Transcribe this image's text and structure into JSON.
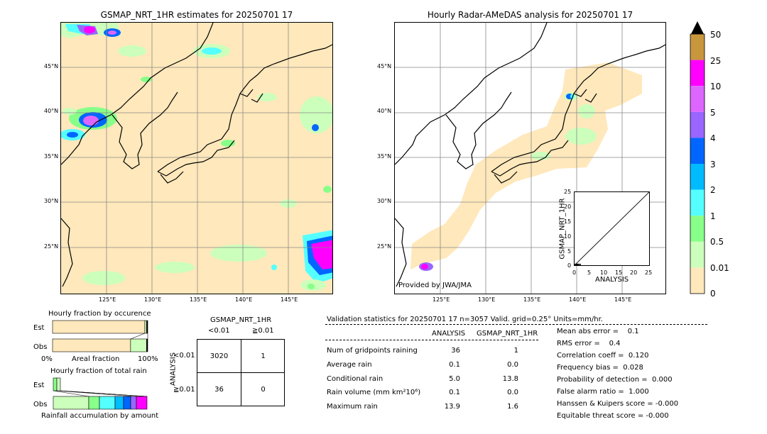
{
  "left_map": {
    "title": "GSMAP_NRT_1HR estimates for 20250701 17",
    "lat_ticks": [
      "45°N",
      "40°N",
      "35°N",
      "30°N",
      "25°N"
    ],
    "lon_ticks": [
      "125°E",
      "130°E",
      "135°E",
      "140°E",
      "145°E"
    ]
  },
  "right_map": {
    "title": "Hourly Radar-AMeDAS analysis for 20250701 17",
    "lat_ticks": [
      "45°N",
      "40°N",
      "35°N",
      "30°N",
      "25°N"
    ],
    "lon_ticks": [
      "125°E",
      "130°E",
      "135°E",
      "140°E",
      "145°E"
    ],
    "credit": "Provided by JWA/JMA"
  },
  "colorbar": {
    "labels": [
      "50",
      "25",
      "10",
      "5",
      "4",
      "3",
      "2",
      "1",
      "0.5",
      "0.01",
      "0"
    ],
    "colors": [
      "#c8963c",
      "#ff00ff",
      "#dd66ff",
      "#9966ff",
      "#0066ff",
      "#00bbff",
      "#55ffff",
      "#88ff88",
      "#ccffbb",
      "#ffe8bb"
    ],
    "overflow_color": "#000000"
  },
  "colors": {
    "land": "#ffe8bb",
    "light_green": "#ccffbb",
    "green": "#88ff88",
    "cyan": "#55ffff",
    "sky": "#00bbff",
    "blue": "#0066ff",
    "violet": "#9966ff",
    "lilac": "#dd66ff",
    "magenta": "#ff00ff"
  },
  "scatter": {
    "xlabel": "ANALYSIS",
    "ylabel": "GSMAP_NRT_1HR",
    "ticks": [
      "0",
      "5",
      "10",
      "15",
      "20",
      "25"
    ]
  },
  "chart_data": [
    {
      "type": "scatter",
      "title": "",
      "xlabel": "ANALYSIS",
      "ylabel": "GSMAP_NRT_1HR",
      "xlim": [
        0,
        25
      ],
      "ylim": [
        0,
        25
      ],
      "x": [
        0.1,
        0.3,
        0.5,
        0.8,
        1.0,
        1.6
      ],
      "y": [
        0.0,
        0.0,
        0.0,
        0.0,
        0.0,
        0.0
      ],
      "reference_line": "y=x"
    },
    {
      "type": "bar",
      "title": "Hourly fraction by occurence",
      "categories": [
        "Est",
        "Obs"
      ],
      "xlabel": "Areal fraction",
      "xlim_labels": [
        "0%",
        "100%"
      ],
      "series": [
        {
          "name": "",
          "values": [
            0.97,
            0.82
          ]
        },
        {
          "name": "",
          "values": [
            0.03,
            0.18
          ]
        }
      ]
    },
    {
      "type": "bar",
      "title": "Hourly fraction of total rain",
      "categories": [
        "Est",
        "Obs"
      ],
      "xlabel": "Rainfall accumulation by amount"
    }
  ],
  "occurrence": {
    "title": "Hourly fraction by occurence",
    "est": "Est",
    "obs": "Obs",
    "x0": "0%",
    "xlabel": "Areal fraction",
    "x1": "100%"
  },
  "totalrain": {
    "title": "Hourly fraction of total rain",
    "est": "Est",
    "obs": "Obs",
    "xlabel": "Rainfall accumulation by amount"
  },
  "contingency": {
    "title": "GSMAP_NRT_1HR",
    "col1": "<0.01",
    "col2": "≧0.01",
    "row_axis": "ANALYSIS",
    "row1": "<0.01",
    "row2": "≧0.01",
    "a": "3020",
    "b": "1",
    "c": "36",
    "d": "0"
  },
  "validation": {
    "header": "Validation statistics for 20250701 17  n=3057 Valid. grid=0.25° Units=mm/hr.",
    "col_analysis": "ANALYSIS",
    "col_gsmap": "GSMAP_NRT_1HR",
    "rows": [
      {
        "label": "Num of gridpoints raining",
        "analysis": "36",
        "gsmap": "1"
      },
      {
        "label": "Average rain",
        "analysis": "0.1",
        "gsmap": "0.0"
      },
      {
        "label": "Conditional rain",
        "analysis": "5.0",
        "gsmap": "13.8"
      },
      {
        "label": "Rain volume (mm km²10⁶)",
        "analysis": "0.1",
        "gsmap": "0.0"
      },
      {
        "label": "Maximum rain",
        "analysis": "13.9",
        "gsmap": "1.6"
      }
    ],
    "scores": [
      "Mean abs error =    0.1",
      "RMS error =    0.4",
      "Correlation coeff =  0.120",
      "Frequency bias =  0.028",
      "Probability of detection =  0.000",
      "False alarm ratio =  1.000",
      "Hanssen & Kuipers score = -0.000",
      "Equitable threat score = -0.000"
    ]
  }
}
